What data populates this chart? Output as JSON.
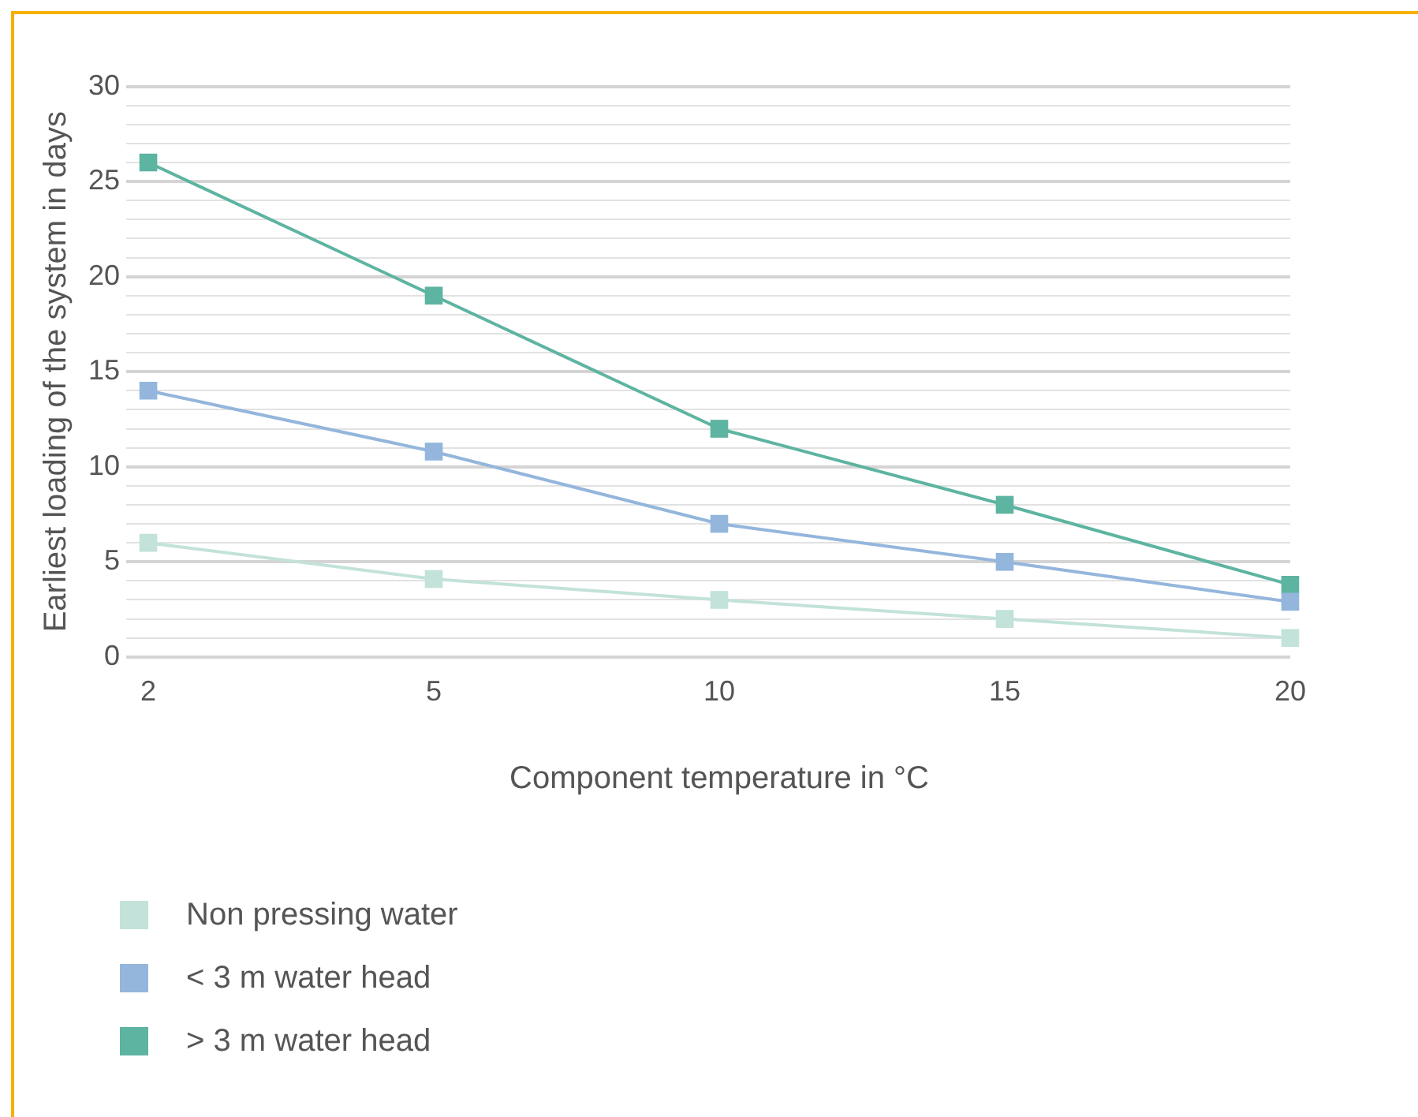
{
  "chart_data": {
    "type": "line",
    "xlabel": "Component temperature in °C",
    "ylabel": "Earliest loading of the system in days",
    "categories": [
      "2",
      "5",
      "10",
      "15",
      "20"
    ],
    "series": [
      {
        "name": "Non pressing water",
        "color": "#c2e2da",
        "values": [
          6,
          4.1,
          3,
          2,
          1
        ]
      },
      {
        "name": "< 3 m water head",
        "color": "#94b6dc",
        "values": [
          14,
          10.8,
          7,
          5,
          2.9
        ]
      },
      {
        "name": "> 3 m water head",
        "color": "#5db4a0",
        "values": [
          26,
          19,
          12,
          8,
          3.8
        ]
      }
    ],
    "ylim": [
      0,
      30
    ],
    "yticks": [
      0,
      {
        "value": 1,
        "label": null
      },
      {
        "value": 2,
        "label": null
      },
      {
        "value": 3,
        "label": null
      },
      {
        "value": 4,
        "label": null
      },
      5,
      {
        "value": 6,
        "label": null
      },
      {
        "value": 7,
        "label": null
      },
      {
        "value": 8,
        "label": null
      },
      {
        "value": 9,
        "label": null
      },
      10,
      {
        "value": 11,
        "label": null
      },
      {
        "value": 12,
        "label": null
      },
      {
        "value": 13,
        "label": null
      },
      {
        "value": 14,
        "label": null
      },
      15,
      {
        "value": 16,
        "label": null
      },
      {
        "value": 17,
        "label": null
      },
      {
        "value": 18,
        "label": null
      },
      {
        "value": 19,
        "label": null
      },
      20,
      {
        "value": 21,
        "label": null
      },
      {
        "value": 22,
        "label": null
      },
      {
        "value": 23,
        "label": null
      },
      {
        "value": 24,
        "label": null
      },
      25,
      {
        "value": 26,
        "label": null
      },
      {
        "value": 27,
        "label": null
      },
      {
        "value": 28,
        "label": null
      },
      {
        "value": 29,
        "label": null
      },
      30
    ],
    "grid": "y",
    "legend": "bottom",
    "marker": "square",
    "line_style": "solid"
  }
}
